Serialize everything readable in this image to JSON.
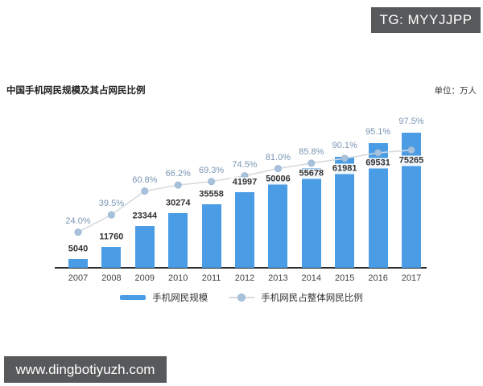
{
  "badges": {
    "tg": "TG: MYYJJPP",
    "site": "www.dingbotiyuzh.com"
  },
  "chart": {
    "title": "中国手机网民规模及其占网民比例",
    "unit": "单位：万人"
  },
  "legend": {
    "bar_label": "手机网民规模",
    "line_label": "手机网民占整体网民比例"
  },
  "colors": {
    "bar": "#4A9CE4",
    "line": "#D6DADF",
    "dot": "#A9C2DC",
    "dot_ring": "#9CB7D4",
    "pct_label": "#7A95B3",
    "value_label": "#333333",
    "axis": "#2B2B2B",
    "badge_bg": "#58595B"
  },
  "chart_data": {
    "type": "bar",
    "title": "中国手机网民规模及其占网民比例",
    "unit_label": "单位：万人",
    "categories": [
      "2007",
      "2008",
      "2009",
      "2010",
      "2011",
      "2012",
      "2013",
      "2014",
      "2015",
      "2016",
      "2017"
    ],
    "series": [
      {
        "name": "手机网民规模",
        "type": "bar",
        "unit": "万人",
        "values": [
          5040,
          11760,
          23344,
          30274,
          35558,
          41997,
          50006,
          55678,
          61981,
          69531,
          75265
        ]
      },
      {
        "name": "手机网民占整体网民比例",
        "type": "line",
        "unit": "%",
        "values": [
          24.0,
          39.5,
          60.8,
          66.2,
          69.3,
          74.5,
          81.0,
          85.8,
          90.1,
          95.1,
          97.5
        ]
      }
    ],
    "legend_position": "bottom",
    "grid": false,
    "value_labels_shown": true,
    "percent_labels_shown": true
  }
}
